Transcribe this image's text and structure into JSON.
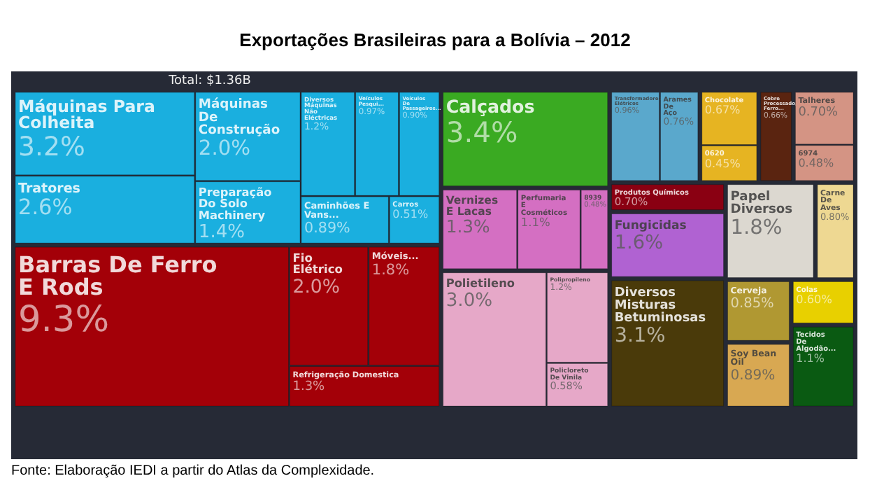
{
  "chart_data": {
    "type": "other",
    "title": "Exportações Brasileiras para a Bolívia – 2012",
    "subtitle": "Total: $1.36B",
    "categories": [
      "Máquinas Para Colheita",
      "Tratores",
      "Máquinas De Construção",
      "Preparação Do Solo Machinery",
      "Diversos Máquinas Não Eléctricas",
      "Veículos Pesqui...",
      "Veículos De Passageiros...",
      "Caminhões E Vans...",
      "Carros",
      "Barras De Ferro E Rods",
      "Fio Elétrico",
      "Móveis...",
      "Refrigeração Domestica",
      "Calçados",
      "Vernizes E Lacas",
      "Perfumaria E Cosméticos",
      "8939",
      "Polietileno",
      "Polipropileno",
      "Policloreto De Vinila",
      "Transformadores Elétricos",
      "Arames De Aço",
      "Chocolate",
      "0620",
      "Cobre Processado/Ferro...",
      "Talheres",
      "6974",
      "Produtos Químicos",
      "Fungicidas",
      "Diversos Misturas Betuminosas",
      "Papel Diversos",
      "Carne De Aves",
      "Cerveja",
      "Soy Bean Oil",
      "Colas",
      "Tecidos De Algodão..."
    ],
    "values": [
      3.2,
      2.6,
      2.0,
      1.4,
      1.2,
      0.97,
      0.9,
      0.89,
      0.51,
      9.3,
      2.0,
      1.8,
      1.3,
      3.4,
      1.3,
      1.1,
      0.48,
      3.0,
      1.2,
      0.58,
      0.96,
      0.76,
      0.67,
      0.45,
      0.66,
      0.7,
      0.48,
      0.7,
      1.6,
      3.1,
      1.8,
      0.8,
      0.85,
      0.89,
      0.6,
      1.1
    ],
    "value_labels": [
      "3.2%",
      "2.6%",
      "2.0%",
      "1.4%",
      "1.2%",
      "0.97%",
      "0.90%",
      "0.89%",
      "0.51%",
      "9.3%",
      "2.0%",
      "1.8%",
      "1.3%",
      "3.4%",
      "1.3%",
      "1.1%",
      "0.48%",
      "3.0%",
      "1.2%",
      "0.58%",
      "0.96%",
      "0.76%",
      "0.67%",
      "0.45%",
      "0.66%",
      "0.70%",
      "0.48%",
      "0.70%",
      "1.6%",
      "3.1%",
      "1.8%",
      "0.80%",
      "0.85%",
      "0.89%",
      "0.60%",
      "1.1%"
    ],
    "colors": [
      "#1aafdf",
      "#1aafdf",
      "#1aafdf",
      "#1aafdf",
      "#1aafdf",
      "#1aafdf",
      "#1aafdf",
      "#1aafdf",
      "#1aafdf",
      "#a30008",
      "#a30008",
      "#a30008",
      "#a30008",
      "#3aaa22",
      "#d46fc2",
      "#d46fc2",
      "#d46fc2",
      "#e6a8c8",
      "#e6a8c8",
      "#e6a8c8",
      "#5aa8cc",
      "#5aa8cc",
      "#e6b422",
      "#e6b422",
      "#5a2410",
      "#d49484",
      "#d49484",
      "#8a0012",
      "#b062d2",
      "#4a3a0a",
      "#dcd8d0",
      "#eed892",
      "#b09832",
      "#d8a852",
      "#e8d000",
      "#0a5a12"
    ],
    "annotations": [
      "Fonte: Elaboração IEDI a partir do Atlas da Complexidade."
    ]
  }
}
